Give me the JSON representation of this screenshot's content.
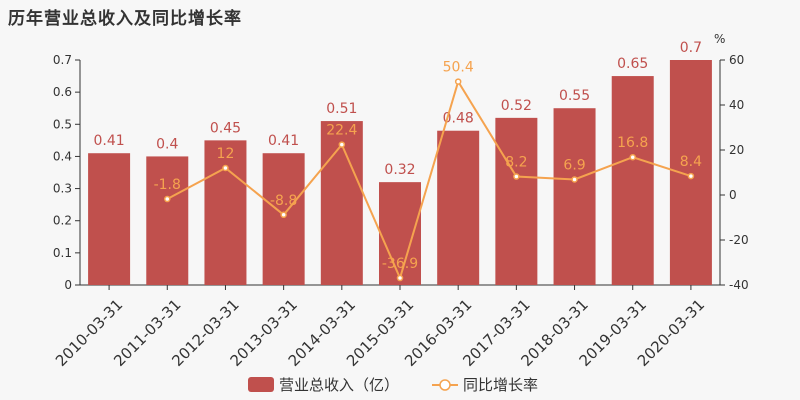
{
  "chart_data": {
    "type": "bar",
    "title": "历年营业总收入及同比增长率",
    "categories": [
      "2010-03-31",
      "2011-03-31",
      "2012-03-31",
      "2013-03-31",
      "2014-03-31",
      "2015-03-31",
      "2016-03-31",
      "2017-03-31",
      "2018-03-31",
      "2019-03-31",
      "2020-03-31"
    ],
    "series": [
      {
        "name": "营业总收入（亿）",
        "type": "bar",
        "axis": "left",
        "color": "#c0504d",
        "values": [
          0.41,
          0.4,
          0.45,
          0.41,
          0.51,
          0.32,
          0.48,
          0.52,
          0.55,
          0.65,
          0.7
        ],
        "labels": [
          "0.41",
          "0.4",
          "0.45",
          "0.41",
          "0.51",
          "0.32",
          "0.48",
          "0.52",
          "0.55",
          "0.65",
          "0.7"
        ]
      },
      {
        "name": "同比增长率",
        "type": "line",
        "axis": "right",
        "color": "#f5a34f",
        "values": [
          null,
          -1.8,
          12,
          -8.8,
          22.4,
          -36.9,
          50.4,
          8.2,
          6.9,
          16.8,
          8.4
        ],
        "labels": [
          "",
          "-1.8",
          "12",
          "-8.8",
          "22.4",
          "-36.9",
          "50.4",
          "8.2",
          "6.9",
          "16.8",
          "8.4"
        ]
      }
    ],
    "y_left": {
      "range": [
        0,
        0.7
      ],
      "ticks": [
        "0",
        "0.1",
        "0.2",
        "0.3",
        "0.4",
        "0.5",
        "0.6",
        "0.7"
      ]
    },
    "y_right": {
      "unit": "%",
      "range": [
        -40,
        60
      ],
      "ticks": [
        "-40",
        "-20",
        "0",
        "20",
        "40",
        "60"
      ]
    },
    "grid": false,
    "legend": "bottom-center"
  }
}
